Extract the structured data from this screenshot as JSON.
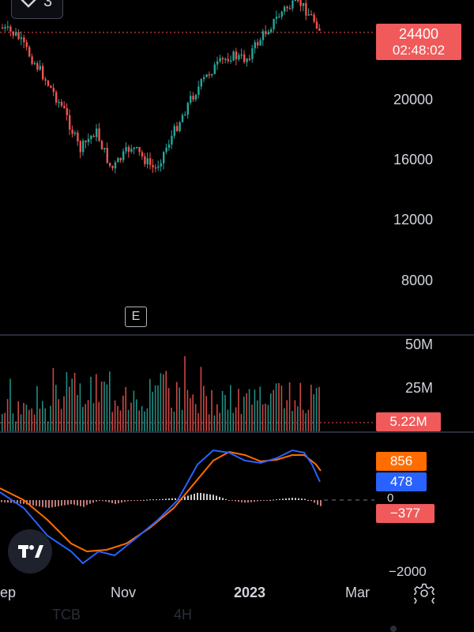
{
  "header": {
    "layers_count": "3"
  },
  "price_axis": {
    "ticks": [
      "20000",
      "16000",
      "12000",
      "8000"
    ]
  },
  "last_price": {
    "value": "24400",
    "countdown": "02:48:02"
  },
  "earnings_marker": "E",
  "volume_axis": {
    "ticks": [
      "50M",
      "25M"
    ],
    "current": "5.22M"
  },
  "macd": {
    "signal_value": "856",
    "macd_value": "478",
    "zero_label": "0",
    "hist_value": "−377",
    "bottom_tick": "−2000"
  },
  "time_axis": {
    "labels": [
      "ep",
      "Nov",
      "2023",
      "Mar"
    ]
  },
  "bottom_bar": {
    "symbol": "TCB",
    "interval": "4H"
  },
  "colors": {
    "up": "#26a69a",
    "down": "#ef5350",
    "macd": "#2962ff",
    "signal": "#ff6d00",
    "background": "#000000"
  }
}
